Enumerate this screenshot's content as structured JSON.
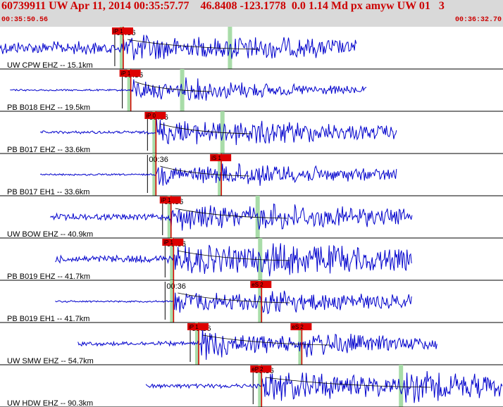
{
  "header": {
    "title": "60739911 UW Apr 11, 2014 00:35:57.77    46.8408 -123.1778  0.0 1.14 Md px amyw UW 01   3",
    "start_time": "00:35:50.56",
    "end_time": "00:36:32.70"
  },
  "colors": {
    "trace": "#0000cc",
    "pick": "#dd0000",
    "window": "#a8dca8",
    "header_text": "#cc0000"
  },
  "minute_label": "00:36",
  "traces": [
    {
      "label": "UW CPW EHZ -- 15.1km",
      "pick_label": "iP 1",
      "s_label": "",
      "start": 0.0,
      "end": 0.71,
      "amp": 0.55,
      "noise": 0.35,
      "p": 0.245,
      "s": 0.46,
      "decay": 0.45
    },
    {
      "label": "PB B018 EHZ -- 19.5km",
      "pick_label": "iP 1",
      "s_label": "",
      "start": 0.02,
      "end": 0.73,
      "amp": 0.55,
      "noise": 0.05,
      "p": 0.26,
      "s": 0.365,
      "decay": 0.6
    },
    {
      "label": "PB B017 EHZ -- 33.6km",
      "pick_label": "iP 0",
      "s_label": "",
      "start": 0.08,
      "end": 0.79,
      "amp": 0.7,
      "noise": 0.08,
      "p": 0.31,
      "s": 0.445,
      "decay": 0.8
    },
    {
      "label": "PB B017 EH1 -- 33.6km",
      "pick_label": "",
      "s_label": "iS 1",
      "start": 0.08,
      "end": 0.79,
      "amp": 0.55,
      "noise": 0.05,
      "p": 0.31,
      "s": 0.44,
      "decay": 0.9
    },
    {
      "label": "UW BOW EHZ -- 40.9km",
      "pick_label": "iP 1",
      "s_label": "",
      "start": 0.1,
      "end": 0.82,
      "amp": 0.6,
      "noise": 0.18,
      "p": 0.34,
      "s": 0.515,
      "decay": 0.8
    },
    {
      "label": "PB B019 EHZ -- 41.7km",
      "pick_label": "iP 1",
      "s_label": "",
      "start": 0.11,
      "end": 0.82,
      "amp": 0.75,
      "noise": 0.2,
      "p": 0.345,
      "s": 0.52,
      "decay": 0.9
    },
    {
      "label": "PB B019 EH1 -- 41.7km",
      "pick_label": "",
      "s_label": "eS 2",
      "start": 0.11,
      "end": 0.82,
      "amp": 0.6,
      "noise": 0.05,
      "p": 0.345,
      "s": 0.52,
      "decay": 0.9
    },
    {
      "label": "UW SMW EHZ -- 54.7km",
      "pick_label": "iP 1",
      "s_label": "eS 2",
      "start": 0.155,
      "end": 0.87,
      "amp": 0.8,
      "noise": 0.12,
      "p": 0.395,
      "s": 0.6,
      "decay": 0.5
    },
    {
      "label": "UW HDW EHZ -- 90.3km",
      "pick_label": "eP 2",
      "s_label": "",
      "start": 0.29,
      "end": 1.0,
      "amp": 0.8,
      "noise": 0.12,
      "p": 0.52,
      "s": 0.8,
      "decay": 1.0
    }
  ]
}
